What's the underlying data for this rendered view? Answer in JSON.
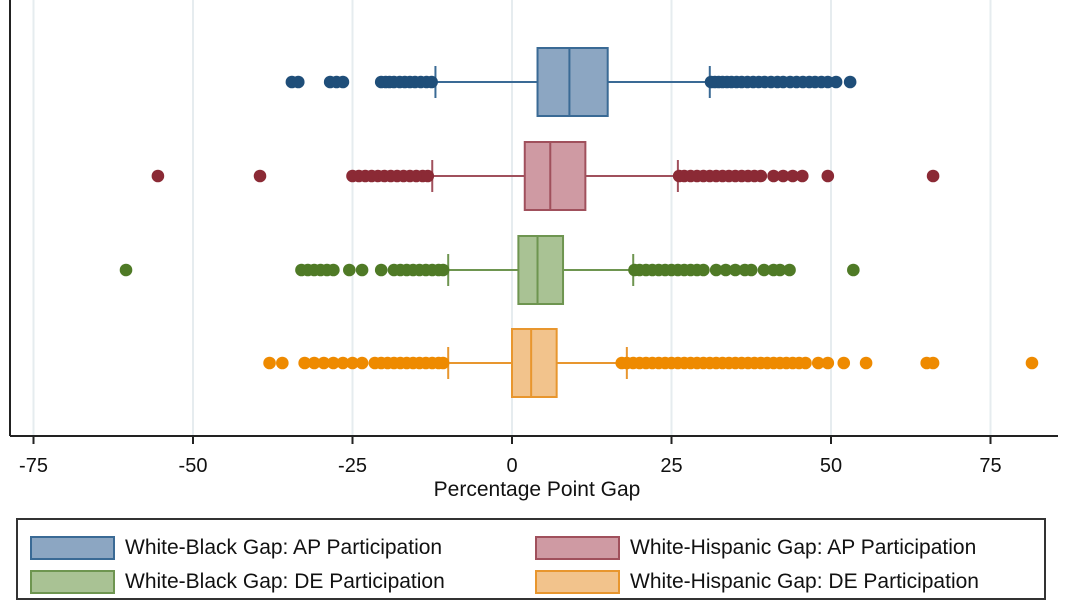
{
  "chart_data": {
    "type": "boxplot",
    "orientation": "horizontal",
    "title": "",
    "xlabel": "Percentage Point Gap",
    "ylabel": "",
    "xlim": [
      -78,
      86
    ],
    "xticks": [
      -75,
      -50,
      -25,
      0,
      25,
      50,
      75
    ],
    "xtick_labels": [
      "-75",
      "-50",
      "-25",
      "0",
      "25",
      "50",
      "75"
    ],
    "grid": "vertical",
    "legend_position": "bottom",
    "series": [
      {
        "name": "White-Black Gap: AP Participation",
        "color": "#8ca6c2",
        "edge": "#3a6a95",
        "point_color": "#1f4e79",
        "whisker_low": -12,
        "q1": 4,
        "median": 9,
        "q3": 15,
        "whisker_high": 31,
        "outliers": [
          -34.5,
          -33.5,
          -28.5,
          -27.5,
          -26.5,
          -20.5,
          -19.8,
          -19.2,
          -18.5,
          -17.6,
          -16.8,
          -16,
          -15.2,
          -14.3,
          -13.4,
          -12.6,
          31.2,
          31.8,
          32.4,
          33,
          33.7,
          34.4,
          35.2,
          36,
          36.9,
          37.8,
          38.7,
          39.6,
          40.6,
          41.6,
          42.5,
          43.6,
          44.6,
          45.6,
          46.6,
          47.5,
          48.5,
          49.5,
          50.8,
          53
        ]
      },
      {
        "name": "White-Hispanic Gap: AP Participation",
        "color": "#cf9aa3",
        "edge": "#a0505c",
        "point_color": "#8b2a35",
        "whisker_low": -12.5,
        "q1": 2,
        "median": 6,
        "q3": 11.5,
        "whisker_high": 26,
        "outliers": [
          -55.5,
          -39.5,
          -25,
          -24,
          -23,
          -22,
          -21,
          -20,
          -19,
          -18,
          -17,
          -16,
          -15,
          -14,
          -13.2,
          26.2,
          27,
          28,
          29,
          30,
          31,
          32,
          33,
          34,
          35,
          36,
          37,
          38,
          39,
          41,
          42.5,
          44,
          45.5,
          49.5,
          66
        ]
      },
      {
        "name": "White-Black Gap: DE Participation",
        "color": "#a9c294",
        "edge": "#6e9550",
        "point_color": "#4f7a26",
        "whisker_low": -10,
        "q1": 1,
        "median": 4,
        "q3": 8,
        "whisker_high": 19,
        "outliers": [
          -60.5,
          -33,
          -32,
          -31,
          -30,
          -29,
          -28,
          -25.5,
          -23.5,
          -20.5,
          -18.5,
          -17.5,
          -16.5,
          -15.5,
          -14.5,
          -13.5,
          -12.5,
          -11.5,
          -10.8,
          19.2,
          20,
          21,
          22,
          23,
          24,
          25,
          26,
          27,
          28,
          29,
          30,
          32,
          33.5,
          35,
          36.5,
          37.5,
          39.5,
          41,
          42,
          43.5,
          53.5
        ]
      },
      {
        "name": "White-Hispanic Gap: DE Participation",
        "color": "#f2c38c",
        "edge": "#e8962e",
        "point_color": "#ee8a00",
        "whisker_low": -10,
        "q1": 0,
        "median": 3,
        "q3": 7,
        "whisker_high": 18,
        "outliers": [
          -38,
          -36,
          -32.5,
          -31,
          -29.5,
          -28,
          -26.5,
          -25,
          -23.5,
          -21.5,
          -20.5,
          -19.5,
          -18.5,
          -17.5,
          -16.5,
          -15.5,
          -14.5,
          -13.5,
          -12.5,
          -11.5,
          -10.8,
          17.2,
          18,
          19,
          20,
          21,
          22,
          23,
          24,
          25,
          26,
          27,
          28,
          29,
          30,
          31,
          32,
          33,
          34,
          35,
          36,
          37,
          38,
          39,
          40,
          41,
          42,
          43,
          44,
          45,
          46,
          48,
          49.5,
          52,
          55.5,
          65,
          66,
          81.5
        ]
      }
    ]
  }
}
